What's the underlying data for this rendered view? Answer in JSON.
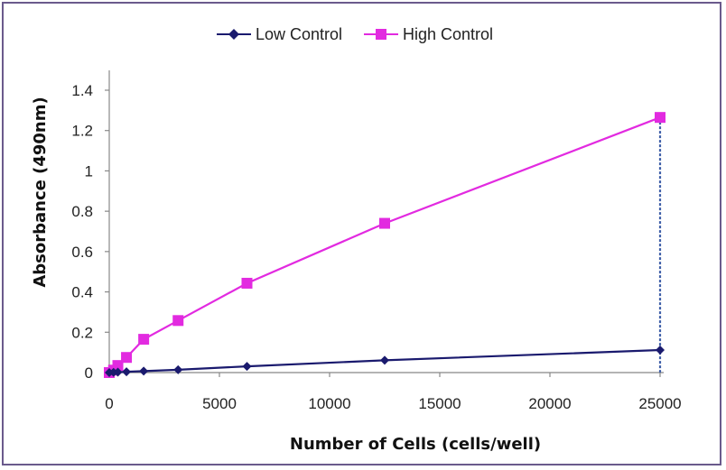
{
  "chart_data": {
    "type": "line",
    "title": "",
    "xlabel": "Number of Cells (cells/well)",
    "ylabel": "Absorbance (490nm)",
    "xlim": [
      0,
      25000
    ],
    "ylim": [
      0,
      1.4
    ],
    "x_ticks": [
      "0",
      "5000",
      "10000",
      "15000",
      "20000",
      "25000"
    ],
    "y_ticks": [
      "0",
      "0.2",
      "0.4",
      "0.6",
      "0.8",
      "1",
      "1.2",
      "1.4"
    ],
    "grid": false,
    "legend_position": "top-center",
    "annotations": [
      "dashed vertical line at x = 25000 from Low Control to High Control"
    ],
    "series": [
      {
        "name": "Low Control",
        "color": "#1a1a6e",
        "marker": "diamond",
        "points": [
          {
            "x": 0,
            "y": 0.0
          },
          {
            "x": 195,
            "y": 0.001
          },
          {
            "x": 390,
            "y": 0.002
          },
          {
            "x": 781,
            "y": 0.004
          },
          {
            "x": 1563,
            "y": 0.007
          },
          {
            "x": 3125,
            "y": 0.014
          },
          {
            "x": 6250,
            "y": 0.031
          },
          {
            "x": 12500,
            "y": 0.061
          },
          {
            "x": 25000,
            "y": 0.112
          }
        ]
      },
      {
        "name": "High Control",
        "color": "#e22ae0",
        "marker": "square",
        "points": [
          {
            "x": 0,
            "y": 0.0
          },
          {
            "x": 195,
            "y": 0.012
          },
          {
            "x": 390,
            "y": 0.035
          },
          {
            "x": 781,
            "y": 0.075
          },
          {
            "x": 1563,
            "y": 0.165
          },
          {
            "x": 3125,
            "y": 0.258
          },
          {
            "x": 6250,
            "y": 0.443
          },
          {
            "x": 12500,
            "y": 0.74
          },
          {
            "x": 25000,
            "y": 1.265
          }
        ]
      }
    ]
  }
}
